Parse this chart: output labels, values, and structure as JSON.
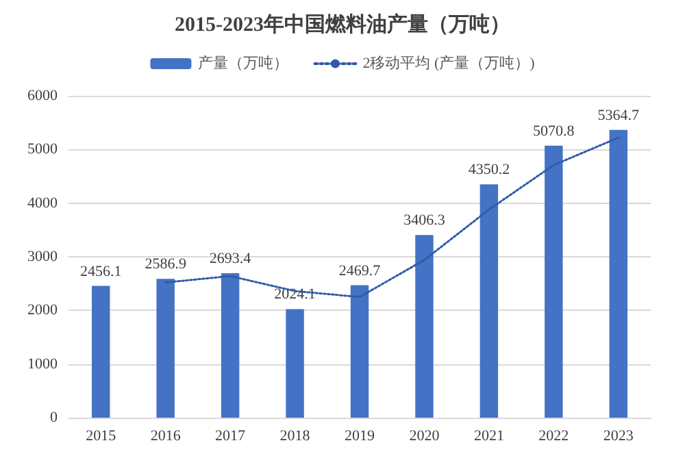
{
  "chart_data": {
    "type": "bar",
    "title": "2015-2023年中国燃料油产量（万吨）",
    "categories": [
      "2015",
      "2016",
      "2017",
      "2018",
      "2019",
      "2020",
      "2021",
      "2022",
      "2023"
    ],
    "series": [
      {
        "name": "产量（万吨）",
        "color": "#4472c4",
        "values": [
          2456.1,
          2586.9,
          2693.4,
          2024.1,
          2469.7,
          3406.3,
          4350.2,
          5070.8,
          5364.7
        ],
        "value_labels": [
          "2456.1",
          "2586.9",
          "2693.4",
          "2024.1",
          "2469.7",
          "3406.3",
          "4350.2",
          "5070.8",
          "5364.7"
        ]
      },
      {
        "name": "2移动平均 (产量（万吨）)",
        "type": "line",
        "color": "#2f5aa8",
        "line_style": "dotted",
        "values": [
          null,
          2520,
          2640,
          2360,
          2250,
          2940,
          3880,
          4710,
          5220
        ]
      }
    ],
    "marker": "none",
    "ylim": [
      0,
      6000
    ],
    "yticks": [
      0,
      1000,
      2000,
      3000,
      4000,
      5000,
      6000
    ],
    "grid": "y",
    "legend": "top"
  }
}
